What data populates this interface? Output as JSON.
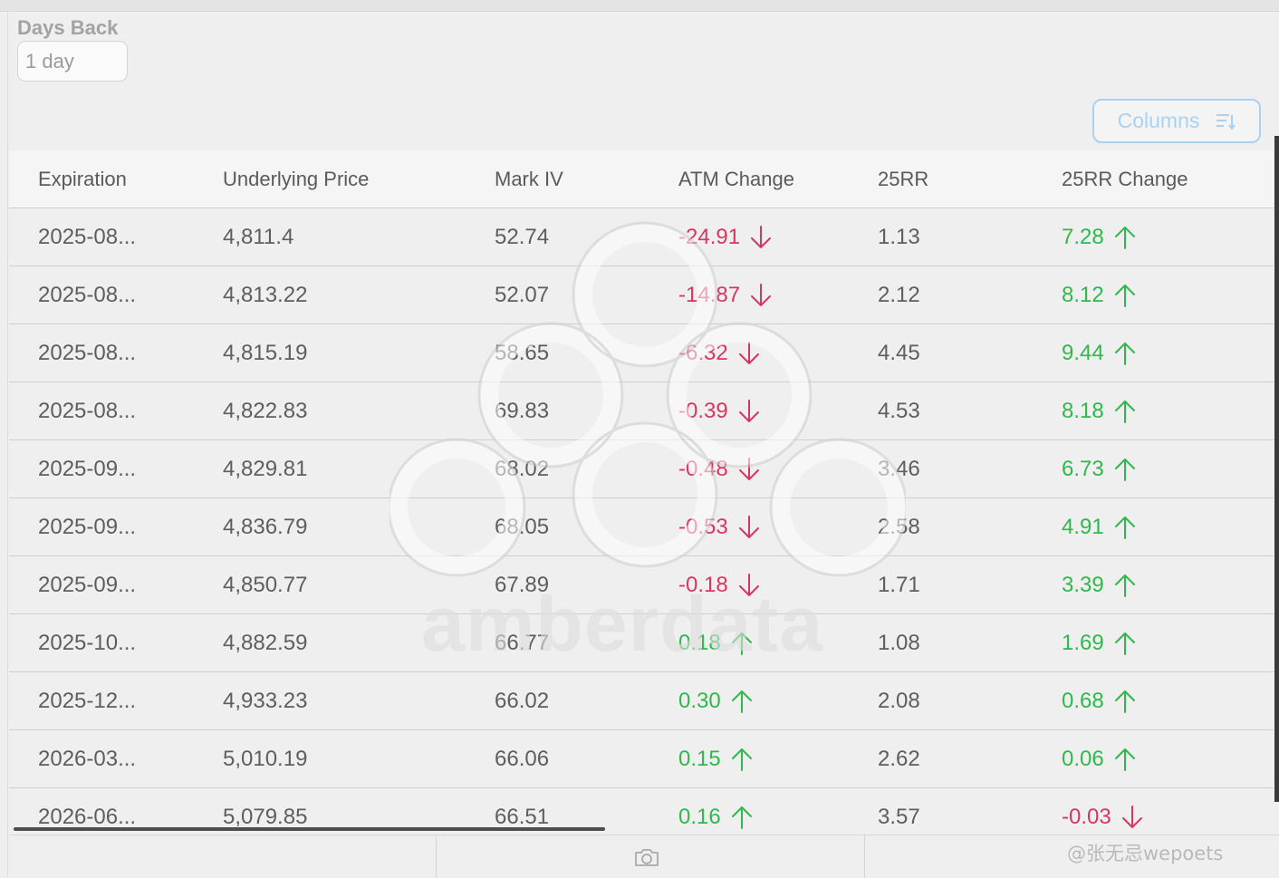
{
  "filter": {
    "label": "Days Back",
    "value": "1 day"
  },
  "toolbar": {
    "columns_label": "Columns",
    "columns_icon": "sort-lines-icon"
  },
  "table": {
    "headers": [
      "Expiration",
      "Underlying Price",
      "Mark IV",
      "ATM Change",
      "25RR",
      "25RR Change"
    ],
    "rows": [
      {
        "expiration": "2025-08...",
        "underlying": "4,811.4",
        "mark_iv": "52.74",
        "atm_change": "-24.91",
        "atm_dir": "down",
        "rr25": "1.13",
        "rr25_change": "7.28",
        "rr25_dir": "up"
      },
      {
        "expiration": "2025-08...",
        "underlying": "4,813.22",
        "mark_iv": "52.07",
        "atm_change": "-14.87",
        "atm_dir": "down",
        "rr25": "2.12",
        "rr25_change": "8.12",
        "rr25_dir": "up"
      },
      {
        "expiration": "2025-08...",
        "underlying": "4,815.19",
        "mark_iv": "58.65",
        "atm_change": "-6.32",
        "atm_dir": "down",
        "rr25": "4.45",
        "rr25_change": "9.44",
        "rr25_dir": "up"
      },
      {
        "expiration": "2025-08...",
        "underlying": "4,822.83",
        "mark_iv": "69.83",
        "atm_change": "-0.39",
        "atm_dir": "down",
        "rr25": "4.53",
        "rr25_change": "8.18",
        "rr25_dir": "up"
      },
      {
        "expiration": "2025-09...",
        "underlying": "4,829.81",
        "mark_iv": "68.02",
        "atm_change": "-0.48",
        "atm_dir": "down",
        "rr25": "3.46",
        "rr25_change": "6.73",
        "rr25_dir": "up"
      },
      {
        "expiration": "2025-09...",
        "underlying": "4,836.79",
        "mark_iv": "68.05",
        "atm_change": "-0.53",
        "atm_dir": "down",
        "rr25": "2.58",
        "rr25_change": "4.91",
        "rr25_dir": "up"
      },
      {
        "expiration": "2025-09...",
        "underlying": "4,850.77",
        "mark_iv": "67.89",
        "atm_change": "-0.18",
        "atm_dir": "down",
        "rr25": "1.71",
        "rr25_change": "3.39",
        "rr25_dir": "up"
      },
      {
        "expiration": "2025-10...",
        "underlying": "4,882.59",
        "mark_iv": "66.77",
        "atm_change": "0.18",
        "atm_dir": "up",
        "rr25": "1.08",
        "rr25_change": "1.69",
        "rr25_dir": "up"
      },
      {
        "expiration": "2025-12...",
        "underlying": "4,933.23",
        "mark_iv": "66.02",
        "atm_change": "0.30",
        "atm_dir": "up",
        "rr25": "2.08",
        "rr25_change": "0.68",
        "rr25_dir": "up"
      },
      {
        "expiration": "2026-03...",
        "underlying": "5,010.19",
        "mark_iv": "66.06",
        "atm_change": "0.15",
        "atm_dir": "up",
        "rr25": "2.62",
        "rr25_change": "0.06",
        "rr25_dir": "up"
      },
      {
        "expiration": "2026-06...",
        "underlying": "5,079.85",
        "mark_iv": "66.51",
        "atm_change": "0.16",
        "atm_dir": "up",
        "rr25": "3.57",
        "rr25_change": "-0.03",
        "rr25_dir": "down"
      }
    ]
  },
  "colors": {
    "negative": "#d6375f",
    "positive": "#2fb84b",
    "accent": "#a8d1f2"
  },
  "watermark": {
    "text": "amberdata"
  },
  "footer": {
    "camera_icon": "camera-icon",
    "credit": "@张无忌wepoets"
  }
}
